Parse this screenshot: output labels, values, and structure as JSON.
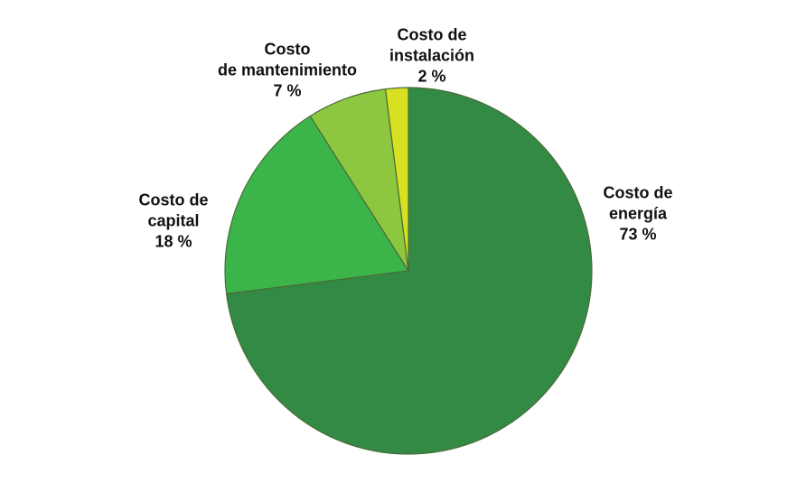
{
  "chart_data": {
    "type": "pie",
    "categories": [
      "Costo de\nenergía",
      "Costo de\ncapital",
      "Costo\nde mantenimiento",
      "Costo de\ninstalación"
    ],
    "values": [
      73,
      18,
      7,
      2
    ],
    "value_labels": [
      "73 %",
      "18 %",
      "7 %",
      "2 %"
    ],
    "colors": [
      "#338a44",
      "#3bb54a",
      "#8dc63f",
      "#d8e022"
    ]
  }
}
